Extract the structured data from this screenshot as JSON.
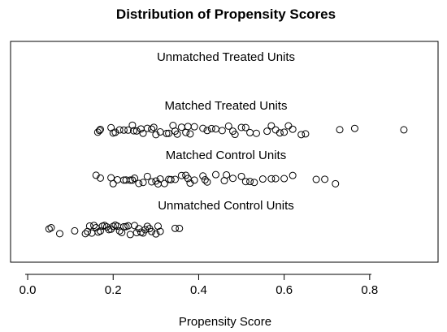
{
  "chart_data": {
    "type": "scatter",
    "title": "Distribution of Propensity Scores",
    "xlabel": "Propensity Score",
    "ylabel": "",
    "xlim": [
      -0.04,
      0.96
    ],
    "xticks": [
      0.0,
      0.2,
      0.4,
      0.6,
      0.8
    ],
    "xtick_labels": [
      "0.0",
      "0.2",
      "0.4",
      "0.6",
      "0.8"
    ],
    "grid": false,
    "groups": [
      {
        "name": "Unmatched Treated Units",
        "values": []
      },
      {
        "name": "Matched Treated Units",
        "values": [
          0.164,
          0.168,
          0.17,
          0.195,
          0.2,
          0.205,
          0.215,
          0.225,
          0.235,
          0.245,
          0.248,
          0.255,
          0.265,
          0.27,
          0.28,
          0.29,
          0.295,
          0.3,
          0.31,
          0.325,
          0.33,
          0.34,
          0.345,
          0.35,
          0.36,
          0.37,
          0.375,
          0.38,
          0.39,
          0.41,
          0.42,
          0.43,
          0.44,
          0.455,
          0.47,
          0.48,
          0.485,
          0.5,
          0.51,
          0.52,
          0.535,
          0.56,
          0.57,
          0.58,
          0.59,
          0.6,
          0.61,
          0.62,
          0.64,
          0.65,
          0.73,
          0.765,
          0.88
        ]
      },
      {
        "name": "Matched Control Units",
        "values": [
          0.16,
          0.17,
          0.195,
          0.2,
          0.21,
          0.225,
          0.23,
          0.24,
          0.245,
          0.25,
          0.26,
          0.27,
          0.28,
          0.29,
          0.3,
          0.305,
          0.31,
          0.32,
          0.33,
          0.335,
          0.345,
          0.36,
          0.37,
          0.375,
          0.38,
          0.39,
          0.41,
          0.415,
          0.42,
          0.44,
          0.46,
          0.465,
          0.48,
          0.5,
          0.51,
          0.52,
          0.53,
          0.55,
          0.57,
          0.58,
          0.6,
          0.62,
          0.675,
          0.695,
          0.72
        ]
      },
      {
        "name": "Unmatched Control Units",
        "values": [
          0.05,
          0.055,
          0.075,
          0.11,
          0.135,
          0.14,
          0.145,
          0.15,
          0.155,
          0.16,
          0.165,
          0.17,
          0.175,
          0.18,
          0.185,
          0.19,
          0.195,
          0.2,
          0.205,
          0.21,
          0.215,
          0.22,
          0.225,
          0.23,
          0.235,
          0.24,
          0.25,
          0.255,
          0.26,
          0.265,
          0.27,
          0.275,
          0.28,
          0.285,
          0.29,
          0.3,
          0.305,
          0.31,
          0.345,
          0.355
        ]
      }
    ]
  }
}
